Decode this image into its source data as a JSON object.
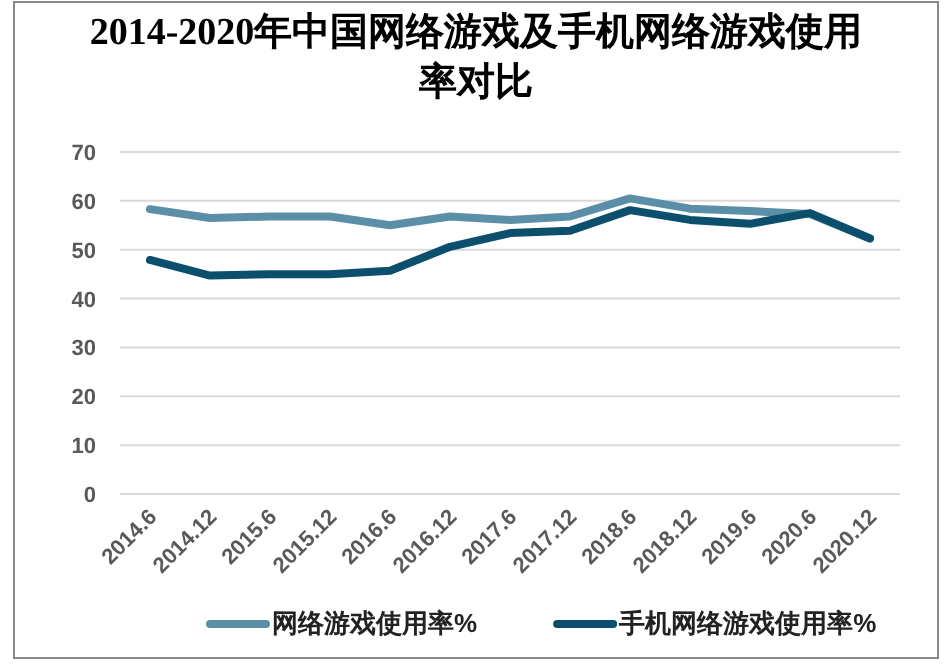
{
  "chart_data": {
    "type": "line",
    "title": "2014-2020年中国网络游戏及手机网络游戏使用率对比",
    "categories": [
      "2014.6",
      "2014.12",
      "2015.6",
      "2015.12",
      "2016.6",
      "2016.12",
      "2017.6",
      "2017.12",
      "2018.6",
      "2018.12",
      "2019.6",
      "2020.6",
      "2020.12"
    ],
    "series": [
      {
        "name": "网络游戏使用率%",
        "color": "#5b8fa8",
        "values": [
          58.3,
          56.5,
          56.8,
          56.8,
          55.0,
          56.8,
          56.1,
          56.8,
          60.5,
          58.4,
          57.9,
          57.3,
          52.3
        ]
      },
      {
        "name": "手机网络游戏使用率%",
        "color": "#0b4f6c",
        "values": [
          47.9,
          44.7,
          45.0,
          45.0,
          45.7,
          50.6,
          53.4,
          53.9,
          58.1,
          56.1,
          55.3,
          57.5,
          52.3
        ]
      }
    ],
    "ylim": [
      0,
      70
    ],
    "yticks": [
      0,
      10,
      20,
      30,
      40,
      50,
      60,
      70
    ],
    "grid": "y",
    "legend": "bottom",
    "marker": "none",
    "line_style": "solid"
  }
}
